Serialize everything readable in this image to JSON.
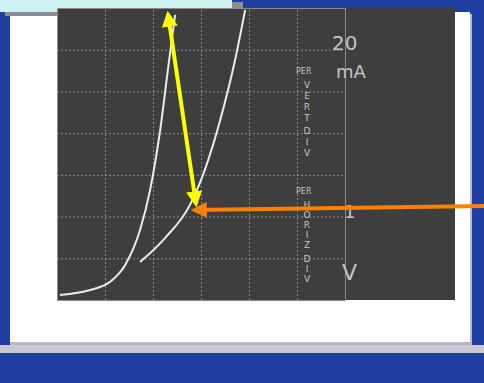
{
  "chart_data": {
    "type": "line",
    "xlim": [
      0,
      6
    ],
    "xticks": [
      0,
      1,
      2,
      3,
      4,
      5,
      6
    ],
    "ylim": [
      0,
      140
    ],
    "yticks": [
      0,
      20,
      40,
      60,
      80,
      100,
      120,
      140
    ],
    "grid": true,
    "tick_labels": false,
    "color": "#ececec",
    "series": [
      {
        "x": [
          0.06,
          0.69,
          1.1,
          1.42,
          1.73,
          1.94,
          2.15,
          2.31,
          2.46
        ],
        "values": [
          2.4,
          4.8,
          8.6,
          16.8,
          33.6,
          52.8,
          81.5,
          110.3,
          136.7
        ]
      },
      {
        "x": [
          1.73,
          2.25,
          2.77,
          3.08,
          3.4,
          3.71,
          3.92
        ],
        "values": [
          18.2,
          29.7,
          45.6,
          62.4,
          86.3,
          115.1,
          139.1
        ]
      }
    ],
    "annotations": [
      "PER",
      "VERT",
      "DIV",
      "20",
      "mA",
      "PER",
      "HORIZ",
      "DIV",
      "1",
      "V"
    ]
  }
}
